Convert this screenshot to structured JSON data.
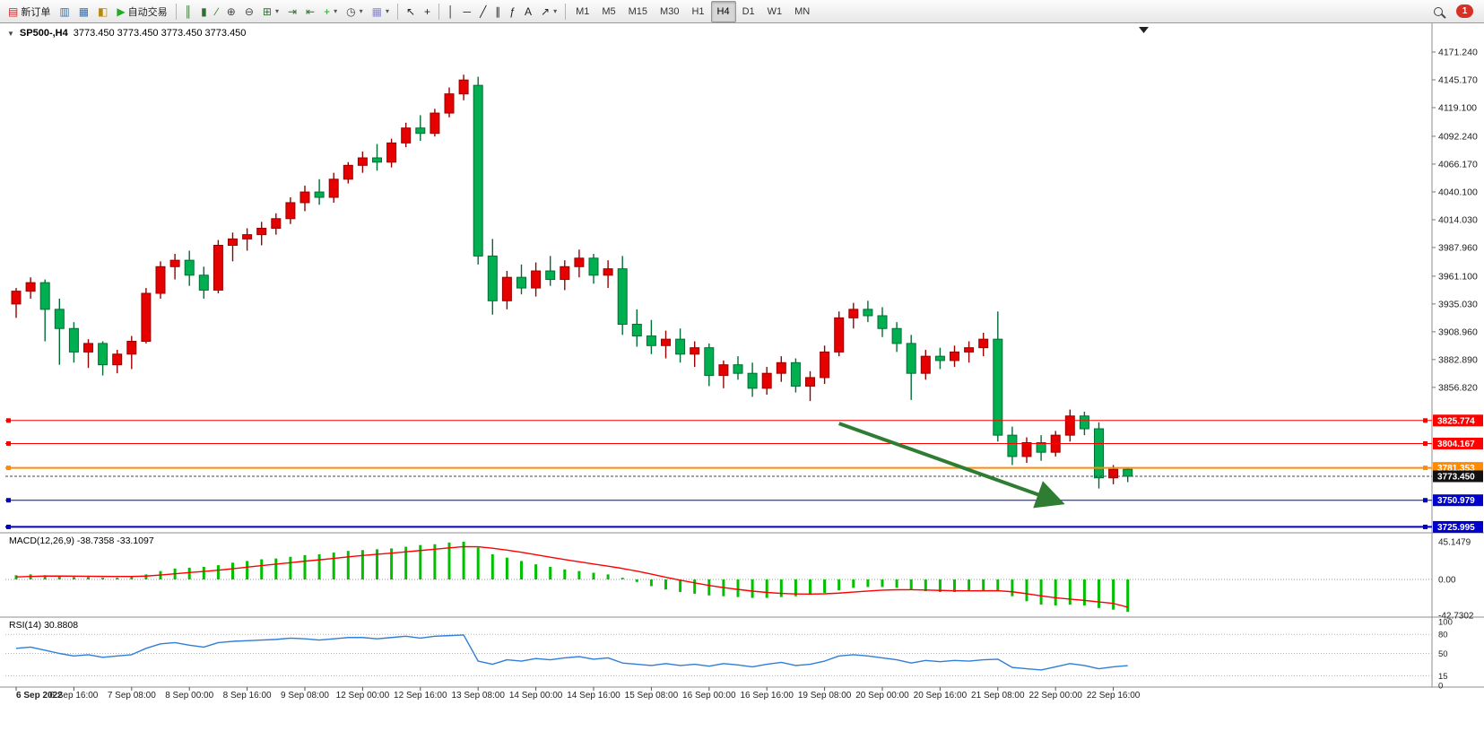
{
  "toolbar": {
    "groups": [
      {
        "buttons": [
          {
            "name": "new-order-button",
            "icon": "new-order-icon",
            "glyph": "▤",
            "glyph_color": "#cc2222",
            "label": "新订单"
          }
        ]
      },
      {
        "buttons": [
          {
            "name": "market-watch-button",
            "icon": "market-watch-icon",
            "glyph": "▥",
            "glyph_color": "#3a6ea5"
          },
          {
            "name": "data-window-button",
            "icon": "data-window-icon",
            "glyph": "▦",
            "glyph_color": "#3a6ea5"
          },
          {
            "name": "navigator-button",
            "icon": "navigator-icon",
            "glyph": "◧",
            "glyph_color": "#b8860b"
          }
        ]
      },
      {
        "buttons": [
          {
            "name": "autotrading-button",
            "icon": "autotrading-icon",
            "glyph": "▶",
            "glyph_color": "#22aa22",
            "label": "自动交易"
          }
        ]
      },
      {
        "separator": true
      },
      {
        "buttons": [
          {
            "name": "bar-chart-button",
            "icon": "bar-chart-icon",
            "glyph": "║",
            "glyph_color": "#2f6f2f"
          },
          {
            "name": "candlestick-chart-button",
            "icon": "candlestick-chart-icon",
            "glyph": "▮",
            "glyph_color": "#2f6f2f"
          },
          {
            "name": "line-chart-button",
            "icon": "line-chart-icon",
            "glyph": "∕",
            "glyph_color": "#2f6f2f"
          }
        ]
      },
      {
        "buttons": [
          {
            "name": "zoom-in-button",
            "icon": "zoom-in-icon",
            "glyph": "⊕",
            "glyph_color": "#444444"
          },
          {
            "name": "zoom-out-button",
            "icon": "zoom-out-icon",
            "glyph": "⊖",
            "glyph_color": "#444444"
          }
        ]
      },
      {
        "buttons": [
          {
            "name": "tile-windows-button",
            "icon": "tile-windows-icon",
            "glyph": "⊞",
            "glyph_color": "#2f6f2f",
            "caret": true
          },
          {
            "name": "auto-scroll-button",
            "icon": "auto-scroll-icon",
            "glyph": "⇥",
            "glyph_color": "#2f6f2f"
          },
          {
            "name": "chart-shift-button",
            "icon": "chart-shift-icon",
            "glyph": "⇤",
            "glyph_color": "#2f6f2f"
          }
        ]
      },
      {
        "buttons": [
          {
            "name": "indicators-button",
            "icon": "indicators-icon",
            "glyph": "+",
            "glyph_color": "#22aa22",
            "caret": true
          },
          {
            "name": "periods-button",
            "icon": "periods-icon",
            "glyph": "◷",
            "glyph_color": "#444444",
            "caret": true
          },
          {
            "name": "templates-button",
            "icon": "templates-icon",
            "glyph": "▦",
            "glyph_color": "#8888cc",
            "caret": true
          }
        ]
      },
      {
        "separator": true
      },
      {
        "buttons": [
          {
            "name": "cursor-button",
            "icon": "cursor-icon",
            "glyph": "↖",
            "glyph_color": "#222222"
          },
          {
            "name": "crosshair-button",
            "icon": "crosshair-icon",
            "glyph": "+",
            "glyph_color": "#222222"
          }
        ]
      },
      {
        "separator": true
      },
      {
        "buttons": [
          {
            "name": "vertical-line-button",
            "icon": "vertical-line-icon",
            "glyph": "│",
            "glyph_color": "#222222"
          },
          {
            "name": "horizontal-line-button",
            "icon": "horizontal-line-icon",
            "glyph": "─",
            "glyph_color": "#222222"
          },
          {
            "name": "trendline-button",
            "icon": "trendline-icon",
            "glyph": "╱",
            "glyph_color": "#222222"
          },
          {
            "name": "channel-button",
            "icon": "equidistant-channel-icon",
            "glyph": "∥",
            "glyph_color": "#222222"
          },
          {
            "name": "fibonacci-button",
            "icon": "fibonacci-icon",
            "glyph": "ƒ",
            "glyph_color": "#222222"
          },
          {
            "name": "text-button",
            "icon": "text-icon",
            "glyph": "A",
            "glyph_color": "#222222"
          },
          {
            "name": "arrows-button",
            "icon": "arrows-icon",
            "glyph": "↗",
            "glyph_color": "#222222",
            "caret": true
          }
        ]
      },
      {
        "separator": true
      }
    ],
    "timeframes": [
      {
        "label": "M1"
      },
      {
        "label": "M5"
      },
      {
        "label": "M15"
      },
      {
        "label": "M30"
      },
      {
        "label": "H1"
      },
      {
        "label": "H4",
        "active": true
      },
      {
        "label": "D1"
      },
      {
        "label": "W1"
      },
      {
        "label": "MN"
      }
    ],
    "notification_count": "1"
  },
  "chart": {
    "title": {
      "symbol": "SP500-,H4",
      "quotes": "3773.450 3773.450 3773.450 3773.450"
    },
    "colors": {
      "up_fill": "#e60000",
      "up_stroke": "#990000",
      "down_fill": "#00b050",
      "down_stroke": "#006e34",
      "macd_bar": "#00c000",
      "macd_signal": "#ff0000",
      "rsi_line": "#2f7ed8",
      "red_line": "#ff0000",
      "orange_line": "#ff8c00",
      "blue_line": "#0000cc",
      "current_price_badge": "#111111",
      "arrow": "#2e7d32"
    }
  },
  "chart_data": {
    "type": "candlestick",
    "symbol": "SP500-",
    "timeframe": "H4",
    "title": "SP500-,H4 3773.450 3773.450 3773.450 3773.450",
    "ylim_visible": [
      3710,
      4180
    ],
    "price_axis_labels": [
      "4171.240",
      "4145.170",
      "4119.100",
      "4092.240",
      "4066.170",
      "4040.100",
      "4014.030",
      "3987.960",
      "3961.100",
      "3935.030",
      "3908.960",
      "3882.890",
      "3856.820"
    ],
    "ohlc": [
      [
        3935,
        3950,
        3922,
        3947
      ],
      [
        3947,
        3960,
        3940,
        3955
      ],
      [
        3955,
        3958,
        3900,
        3930
      ],
      [
        3930,
        3940,
        3878,
        3912
      ],
      [
        3912,
        3918,
        3880,
        3890
      ],
      [
        3890,
        3902,
        3875,
        3898
      ],
      [
        3898,
        3900,
        3868,
        3878
      ],
      [
        3878,
        3892,
        3870,
        3888
      ],
      [
        3888,
        3905,
        3874,
        3900
      ],
      [
        3900,
        3950,
        3898,
        3945
      ],
      [
        3945,
        3975,
        3940,
        3970
      ],
      [
        3970,
        3982,
        3958,
        3976
      ],
      [
        3976,
        3985,
        3952,
        3962
      ],
      [
        3962,
        3970,
        3940,
        3948
      ],
      [
        3948,
        3995,
        3945,
        3990
      ],
      [
        3990,
        4002,
        3975,
        3996
      ],
      [
        3996,
        4006,
        3985,
        4000
      ],
      [
        4000,
        4012,
        3990,
        4006
      ],
      [
        4006,
        4020,
        4000,
        4015
      ],
      [
        4015,
        4035,
        4010,
        4030
      ],
      [
        4030,
        4046,
        4022,
        4040
      ],
      [
        4040,
        4052,
        4028,
        4035
      ],
      [
        4035,
        4058,
        4030,
        4052
      ],
      [
        4052,
        4068,
        4048,
        4065
      ],
      [
        4065,
        4078,
        4058,
        4072
      ],
      [
        4072,
        4085,
        4060,
        4068
      ],
      [
        4068,
        4090,
        4063,
        4086
      ],
      [
        4086,
        4105,
        4082,
        4100
      ],
      [
        4100,
        4112,
        4088,
        4095
      ],
      [
        4095,
        4118,
        4092,
        4114
      ],
      [
        4114,
        4138,
        4110,
        4132
      ],
      [
        4132,
        4150,
        4126,
        4145
      ],
      [
        4140,
        4148,
        3972,
        3980
      ],
      [
        3980,
        3996,
        3925,
        3938
      ],
      [
        3938,
        3966,
        3930,
        3960
      ],
      [
        3960,
        3972,
        3944,
        3950
      ],
      [
        3950,
        3974,
        3942,
        3966
      ],
      [
        3966,
        3980,
        3952,
        3958
      ],
      [
        3958,
        3976,
        3948,
        3970
      ],
      [
        3970,
        3986,
        3960,
        3978
      ],
      [
        3978,
        3982,
        3954,
        3962
      ],
      [
        3962,
        3976,
        3950,
        3968
      ],
      [
        3968,
        3980,
        3906,
        3916
      ],
      [
        3916,
        3930,
        3895,
        3905
      ],
      [
        3905,
        3920,
        3888,
        3896
      ],
      [
        3896,
        3910,
        3884,
        3902
      ],
      [
        3902,
        3912,
        3880,
        3888
      ],
      [
        3888,
        3900,
        3876,
        3894
      ],
      [
        3894,
        3898,
        3858,
        3868
      ],
      [
        3868,
        3882,
        3856,
        3878
      ],
      [
        3878,
        3886,
        3864,
        3870
      ],
      [
        3870,
        3880,
        3848,
        3856
      ],
      [
        3856,
        3876,
        3850,
        3870
      ],
      [
        3870,
        3886,
        3862,
        3880
      ],
      [
        3880,
        3884,
        3852,
        3858
      ],
      [
        3858,
        3872,
        3844,
        3866
      ],
      [
        3866,
        3896,
        3860,
        3890
      ],
      [
        3890,
        3928,
        3886,
        3922
      ],
      [
        3922,
        3936,
        3912,
        3930
      ],
      [
        3930,
        3938,
        3918,
        3924
      ],
      [
        3924,
        3932,
        3904,
        3912
      ],
      [
        3912,
        3918,
        3890,
        3898
      ],
      [
        3898,
        3906,
        3845,
        3870
      ],
      [
        3870,
        3892,
        3864,
        3886
      ],
      [
        3886,
        3894,
        3874,
        3882
      ],
      [
        3882,
        3896,
        3876,
        3890
      ],
      [
        3890,
        3900,
        3880,
        3894
      ],
      [
        3894,
        3908,
        3886,
        3902
      ],
      [
        3902,
        3928,
        3806,
        3812
      ],
      [
        3812,
        3820,
        3784,
        3792
      ],
      [
        3792,
        3810,
        3786,
        3805
      ],
      [
        3805,
        3812,
        3788,
        3796
      ],
      [
        3796,
        3816,
        3792,
        3812
      ],
      [
        3812,
        3836,
        3806,
        3830
      ],
      [
        3830,
        3834,
        3812,
        3818
      ],
      [
        3818,
        3824,
        3762,
        3772
      ],
      [
        3772,
        3784,
        3766,
        3780
      ],
      [
        3780,
        3782,
        3768,
        3773.45
      ]
    ],
    "time_labels": [
      {
        "i": 0,
        "t": "6 Sep 2022"
      },
      {
        "i": 4,
        "t": "6 Sep 16:00"
      },
      {
        "i": 8,
        "t": "7 Sep 08:00"
      },
      {
        "i": 12,
        "t": "8 Sep 00:00"
      },
      {
        "i": 16,
        "t": "8 Sep 16:00"
      },
      {
        "i": 20,
        "t": "9 Sep 08:00"
      },
      {
        "i": 24,
        "t": "12 Sep 00:00"
      },
      {
        "i": 28,
        "t": "12 Sep 16:00"
      },
      {
        "i": 32,
        "t": "13 Sep 08:00"
      },
      {
        "i": 36,
        "t": "14 Sep 00:00"
      },
      {
        "i": 40,
        "t": "14 Sep 16:00"
      },
      {
        "i": 44,
        "t": "15 Sep 08:00"
      },
      {
        "i": 48,
        "t": "16 Sep 00:00"
      },
      {
        "i": 52,
        "t": "16 Sep 16:00"
      },
      {
        "i": 56,
        "t": "19 Sep 08:00"
      },
      {
        "i": 60,
        "t": "20 Sep 00:00"
      },
      {
        "i": 64,
        "t": "20 Sep 16:00"
      },
      {
        "i": 68,
        "t": "21 Sep 08:00"
      },
      {
        "i": 72,
        "t": "22 Sep 00:00"
      },
      {
        "i": 76,
        "t": "22 Sep 16:00"
      }
    ],
    "indicators": {
      "macd": {
        "label": "MACD(12,26,9)",
        "values_text": "-38.7358 -33.1097",
        "scale_labels": [
          "45.1479",
          "0.00",
          "-42.7302"
        ],
        "scale_values": [
          45.1479,
          0,
          -42.7302
        ],
        "histogram": [
          5,
          6,
          5,
          4,
          3,
          3,
          2,
          2,
          3,
          6,
          10,
          13,
          14,
          15,
          17,
          20,
          22,
          24,
          25,
          27,
          29,
          30,
          32,
          34,
          35,
          36,
          37,
          39,
          41,
          42,
          44,
          45,
          38,
          30,
          26,
          22,
          18,
          15,
          12,
          10,
          8,
          6,
          2,
          -3,
          -8,
          -12,
          -15,
          -17,
          -19,
          -20,
          -21,
          -22,
          -22,
          -21,
          -20,
          -18,
          -16,
          -13,
          -10,
          -9,
          -9,
          -10,
          -12,
          -14,
          -15,
          -15,
          -14,
          -13,
          -13,
          -20,
          -26,
          -30,
          -31,
          -30,
          -31,
          -34,
          -36,
          -38.74
        ],
        "signal": [
          3,
          3.5,
          4,
          4,
          3.9,
          3.8,
          3.6,
          3.5,
          3.5,
          4,
          5.3,
          6.8,
          8.2,
          9.6,
          11,
          12.8,
          14.6,
          16.5,
          18.2,
          20,
          21.8,
          23.4,
          25.1,
          26.9,
          28.5,
          30,
          31.4,
          32.9,
          34.5,
          36,
          37.6,
          39.1,
          39,
          37.2,
          35,
          32.4,
          29.5,
          26.6,
          23.7,
          21,
          18.4,
          15.9,
          13.1,
          9.9,
          6.3,
          2.6,
          -0.9,
          -4.1,
          -7.1,
          -9.7,
          -11.9,
          -13.9,
          -15.5,
          -16.6,
          -17.3,
          -17.4,
          -17.1,
          -16.3,
          -15,
          -13.8,
          -12.8,
          -12.3,
          -12.2,
          -12.6,
          -13.1,
          -13.5,
          -13.6,
          -13.5,
          -13.4,
          -14.7,
          -17,
          -19.6,
          -21.9,
          -23.5,
          -25,
          -26.8,
          -28.6,
          -33.11
        ]
      },
      "rsi": {
        "label": "RSI(14)",
        "value_text": "30.8808",
        "scale_labels": [
          "100",
          "80",
          "50",
          "15",
          "0"
        ],
        "scale_values": [
          100,
          80,
          50,
          15,
          0
        ],
        "levels": [
          80,
          50,
          15
        ],
        "values": [
          58,
          60,
          55,
          50,
          46,
          48,
          44,
          46,
          48,
          58,
          65,
          67,
          63,
          60,
          67,
          69,
          70,
          71,
          72,
          74,
          73,
          71,
          73,
          75,
          75,
          73,
          75,
          77,
          74,
          77,
          78,
          79,
          38,
          33,
          40,
          38,
          42,
          40,
          43,
          45,
          41,
          43,
          35,
          33,
          31,
          34,
          31,
          33,
          30,
          34,
          32,
          29,
          33,
          36,
          31,
          33,
          38,
          46,
          48,
          46,
          43,
          40,
          35,
          39,
          37,
          39,
          38,
          40,
          41,
          28,
          26,
          24,
          29,
          34,
          31,
          26,
          29,
          30.88
        ]
      }
    },
    "objects": {
      "hlines": [
        {
          "price": 3825.774,
          "label": "3825.774",
          "color": "#ff0000",
          "width": 1
        },
        {
          "price": 3804.167,
          "label": "3804.167",
          "color": "#ff0000",
          "width": 1
        },
        {
          "price": 3781.353,
          "label": "3781.353",
          "color": "#ff8c00",
          "width": 2
        },
        {
          "price": 3750.979,
          "label": "3750.979",
          "color": "#0000cc",
          "width": 1
        },
        {
          "price": 3725.995,
          "label": "3725.995",
          "color": "#0000cc",
          "width": 2
        }
      ],
      "arrow": {
        "from_index": 57,
        "from_price": 3823,
        "to_index": 72.3,
        "to_price": 3749,
        "color": "#2e7d32",
        "width": 4
      }
    },
    "current_price": {
      "value": 3773.45,
      "label": "3773.450",
      "color": "#111111"
    }
  }
}
